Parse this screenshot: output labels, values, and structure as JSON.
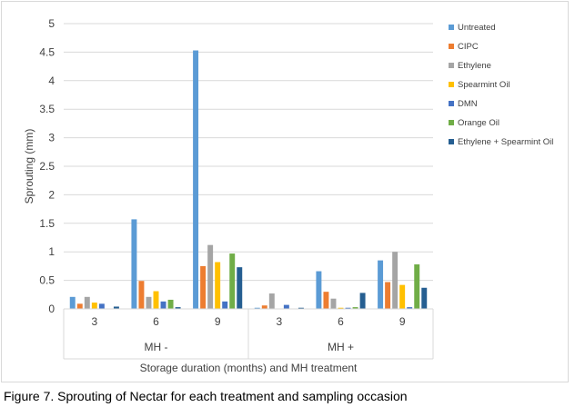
{
  "chart_data": {
    "type": "bar",
    "title": "",
    "ylabel": "Sprouting (mm)",
    "xlabel": "Storage duration (months) and MH treatment",
    "ylim": [
      0,
      5
    ],
    "yticks": [
      "0",
      "0.5",
      "1",
      "1.5",
      "2",
      "2.5",
      "3",
      "3.5",
      "4",
      "4.5",
      "5"
    ],
    "groups": [
      "MH -",
      "MH +"
    ],
    "categories": [
      "3",
      "6",
      "9",
      "3",
      "6",
      "9"
    ],
    "legend_position": "right",
    "grid": true,
    "series": [
      {
        "name": "Untreated",
        "color": "#5b9bd5",
        "values": [
          0.21,
          1.57,
          4.53,
          0.02,
          0.66,
          0.85
        ]
      },
      {
        "name": "CIPC",
        "color": "#ed7d31",
        "values": [
          0.09,
          0.49,
          0.75,
          0.06,
          0.3,
          0.47
        ]
      },
      {
        "name": "Ethylene",
        "color": "#a5a5a5",
        "values": [
          0.21,
          0.21,
          1.12,
          0.27,
          0.18,
          1.0
        ]
      },
      {
        "name": "Spearmint Oil",
        "color": "#ffc000",
        "values": [
          0.11,
          0.31,
          0.82,
          0.0,
          0.02,
          0.42
        ]
      },
      {
        "name": "DMN",
        "color": "#4472c4",
        "values": [
          0.09,
          0.13,
          0.13,
          0.07,
          0.02,
          0.03
        ]
      },
      {
        "name": "Orange Oil",
        "color": "#70ad47",
        "values": [
          0.0,
          0.16,
          0.97,
          0.0,
          0.03,
          0.78
        ]
      },
      {
        "name": "Ethylene + Spearmint Oil",
        "color": "#255e91",
        "values": [
          0.04,
          0.03,
          0.73,
          0.02,
          0.28,
          0.37
        ]
      }
    ]
  },
  "caption": "Figure 7. Sprouting of Nectar for each treatment and sampling occasion"
}
